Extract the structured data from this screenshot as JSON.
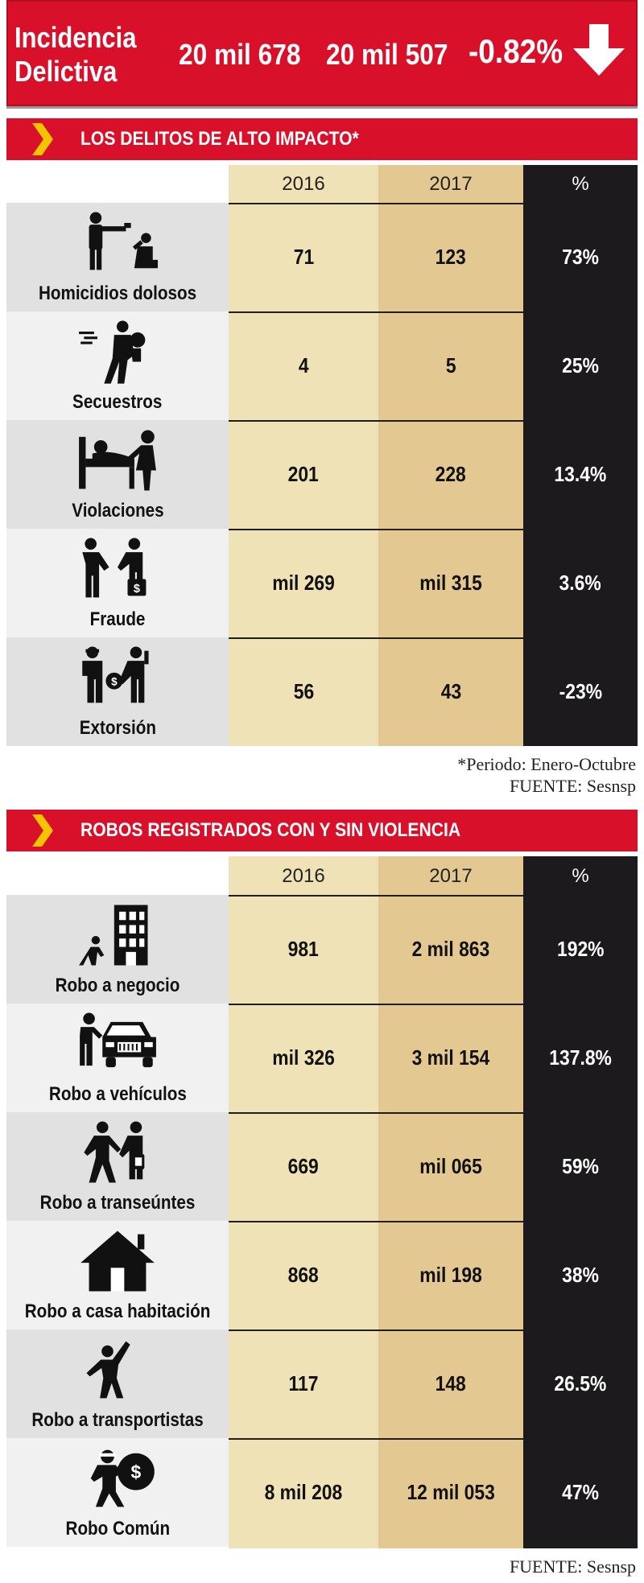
{
  "header": {
    "title_line1": "Incidencia",
    "title_line2": "Delictiva",
    "value_2016": "20 mil 678",
    "value_2017": "20 mil 507",
    "change": "-0.82%",
    "arrow_icon": "down-arrow-icon"
  },
  "colors": {
    "red": "#d8102a",
    "col2016": "#f0e2b7",
    "col2017": "#e3c892",
    "pct": "#1c1a1c"
  },
  "section1": {
    "title": "LOS DELITOS DE ALTO IMPACTO*",
    "col_2016": "2016",
    "col_2017": "2017",
    "col_pct": "%",
    "rows": [
      {
        "label": "Homicidios dolosos",
        "icon": "shooting-icon",
        "v2016": "71",
        "v2017": "123",
        "pct": "73%"
      },
      {
        "label": "Secuestros",
        "icon": "kidnapping-icon",
        "v2016": "4",
        "v2017": "5",
        "pct": "25%"
      },
      {
        "label": "Violaciones",
        "icon": "bed-assault-icon",
        "v2016": "201",
        "v2017": "228",
        "pct": "13.4%"
      },
      {
        "label": "Fraude",
        "icon": "handshake-money-icon",
        "v2016": "mil 269",
        "v2017": "mil 315",
        "pct": "3.6%"
      },
      {
        "label": "Extorsión",
        "icon": "extortion-icon",
        "v2016": "56",
        "v2017": "43",
        "pct": "-23%"
      }
    ],
    "footnote1": "*Periodo: Enero-Octubre",
    "footnote2": "FUENTE: Sesnsp"
  },
  "section2": {
    "title": "ROBOS REGISTRADOS CON Y SIN VIOLENCIA",
    "col_2016": "2016",
    "col_2017": "2017",
    "col_pct": "%",
    "rows": [
      {
        "label": "Robo a negocio",
        "icon": "building-icon",
        "v2016": "981",
        "v2017": "2 mil 863",
        "pct": "192%"
      },
      {
        "label": "Robo a vehículos",
        "icon": "car-theft-icon",
        "v2016": "mil 326",
        "v2017": "3 mil 154",
        "pct": "137.8%"
      },
      {
        "label": "Robo a transeúntes",
        "icon": "pedestrian-robbery-icon",
        "v2016": "669",
        "v2017": "mil 065",
        "pct": "59%"
      },
      {
        "label": "Robo a casa habitación",
        "icon": "house-icon",
        "v2016": "868",
        "v2017": "mil 198",
        "pct": "38%"
      },
      {
        "label": "Robo a transportistas",
        "icon": "truck-driver-icon",
        "v2016": "117",
        "v2017": "148",
        "pct": "26.5%"
      },
      {
        "label": "Robo Común",
        "icon": "thief-bag-icon",
        "v2016": "8 mil 208",
        "v2017": "12 mil 053",
        "pct": "47%"
      }
    ],
    "footnote": "FUENTE: Sesnsp"
  }
}
